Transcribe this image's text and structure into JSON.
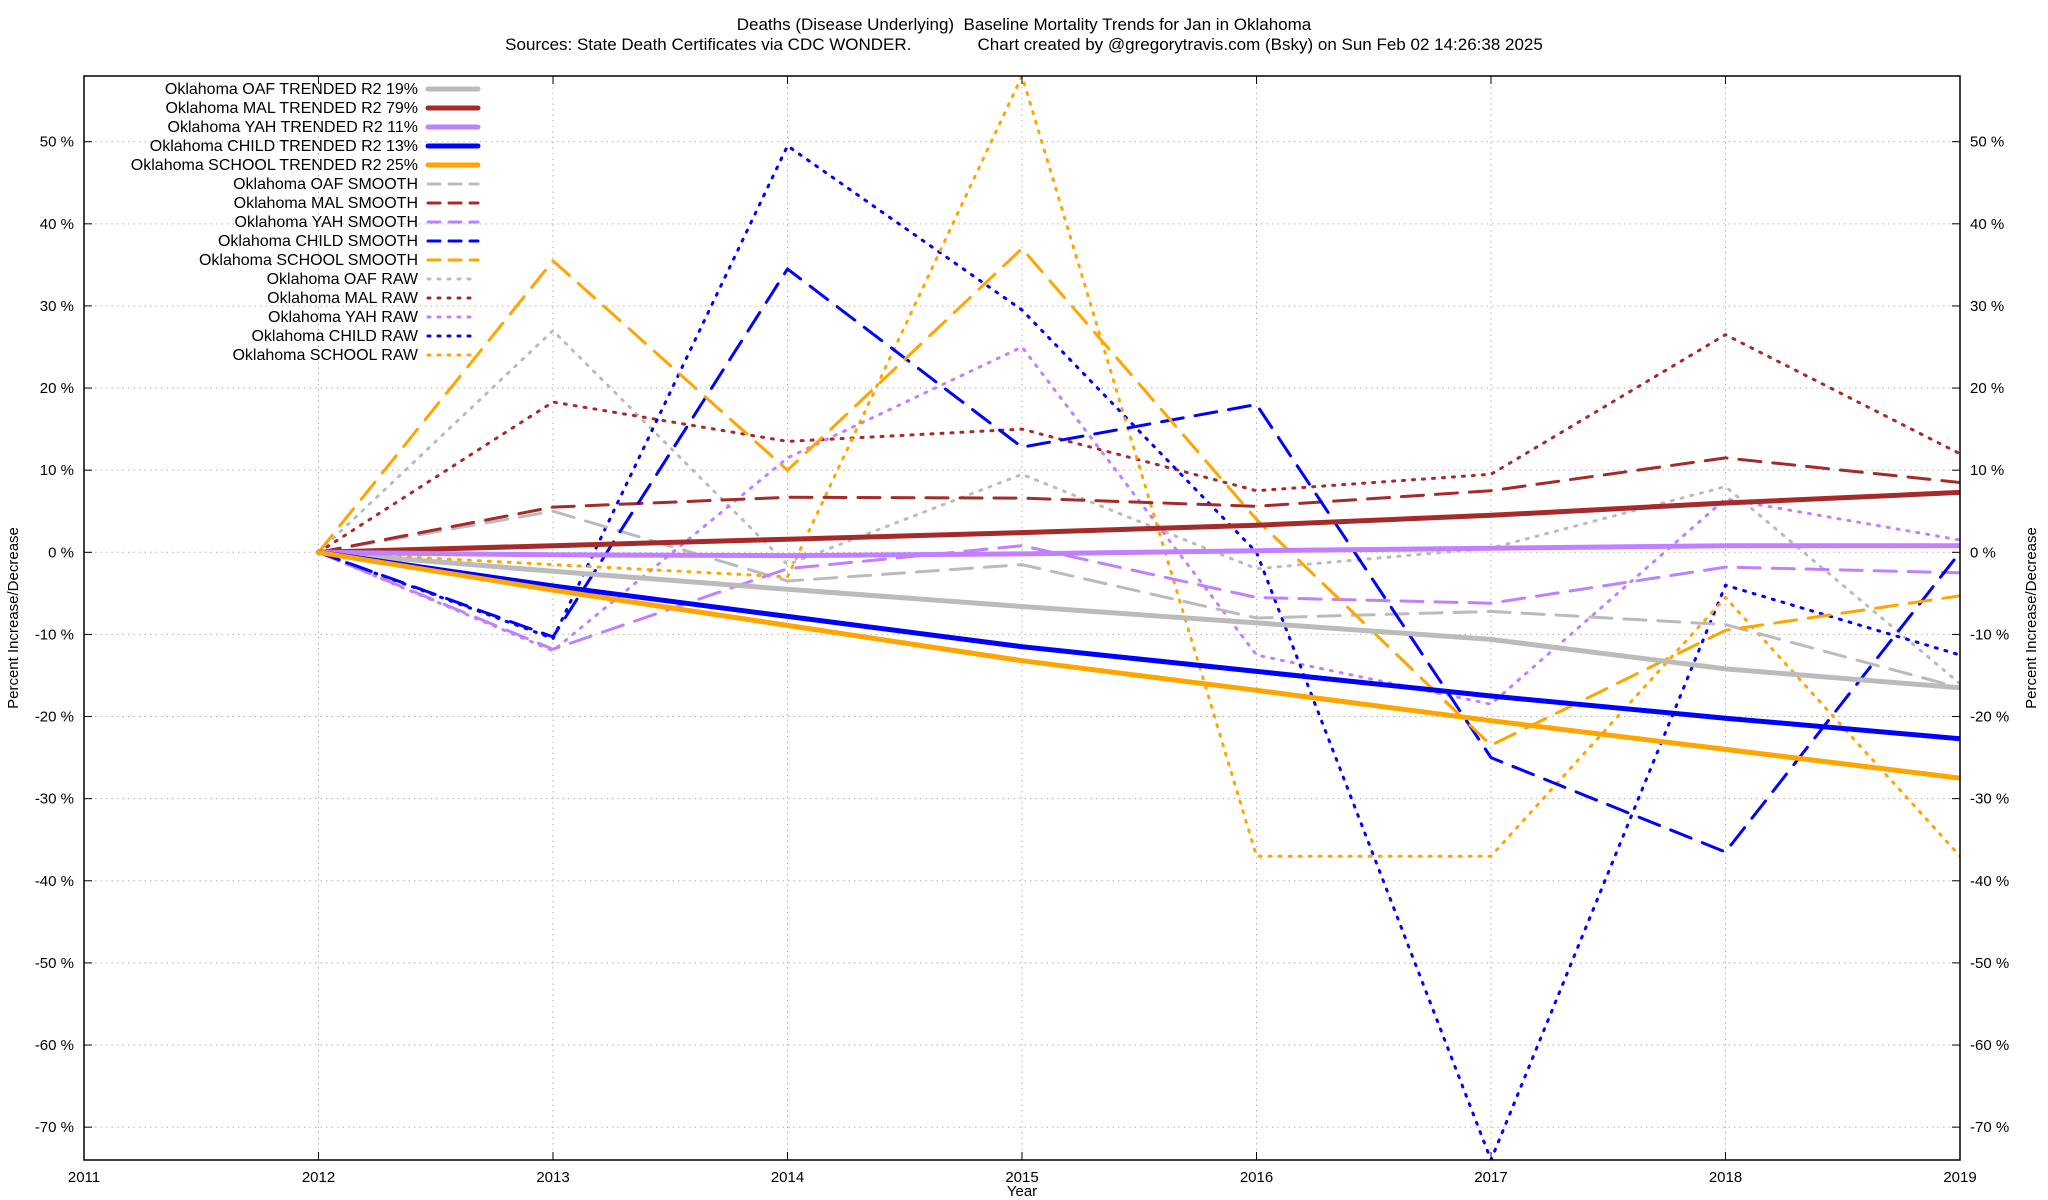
{
  "chart_data": {
    "type": "line",
    "title": "Deaths (Disease Underlying)  Baseline Mortality Trends for Jan in Oklahoma",
    "subtitle": "Sources: State Death Certificates via CDC WONDER.              Chart created by @gregorytravis.com (Bsky) on Sun Feb 02 14:26:38 2025",
    "xlabel": "Year",
    "ylabel": "Percent Increase/Decrease",
    "y2label": "Percent Increase/Decrease",
    "xlim": [
      2011,
      2019
    ],
    "ylim": [
      -74,
      58
    ],
    "x_ticks": [
      2011,
      2012,
      2013,
      2014,
      2015,
      2016,
      2017,
      2018,
      2019
    ],
    "y_ticks": [
      50,
      40,
      30,
      20,
      10,
      0,
      -10,
      -20,
      -30,
      -40,
      -50,
      -60,
      -70
    ],
    "y_tick_suffix": " %",
    "grid": true,
    "legend_position": "top-left",
    "x": [
      2012,
      2013,
      2014,
      2015,
      2016,
      2017,
      2018,
      2019
    ],
    "series": [
      {
        "name": "Oklahoma OAF TRENDED R2  19%",
        "style": "solid",
        "color": "#bbbbbb",
        "values": [
          0,
          -2.3,
          -4.5,
          -6.6,
          -8.6,
          -10.6,
          -14.2,
          -16.5
        ]
      },
      {
        "name": "Oklahoma MAL TRENDED R2  79%",
        "style": "solid",
        "color": "#a52a2a",
        "values": [
          0,
          0.8,
          1.6,
          2.4,
          3.3,
          4.5,
          6.0,
          7.3
        ]
      },
      {
        "name": "Oklahoma YAH TRENDED R2  11%",
        "style": "solid",
        "color": "#c080ff",
        "values": [
          0,
          -0.3,
          -0.4,
          -0.2,
          0.2,
          0.5,
          0.8,
          0.8
        ]
      },
      {
        "name": "Oklahoma CHILD TRENDED R2  13%",
        "style": "solid",
        "color": "#0000ff",
        "values": [
          0,
          -4.1,
          -7.8,
          -11.5,
          -14.5,
          -17.5,
          -20.2,
          -22.7
        ]
      },
      {
        "name": "Oklahoma SCHOOL TRENDED R2  25%",
        "style": "solid",
        "color": "#ffa500",
        "values": [
          0,
          -4.6,
          -8.9,
          -13.2,
          -16.8,
          -20.5,
          -24.0,
          -27.5
        ]
      },
      {
        "name": "Oklahoma OAF SMOOTH",
        "style": "dashed",
        "color": "#bbbbbb",
        "values": [
          0,
          5.0,
          -3.5,
          -1.5,
          -8.0,
          -7.2,
          -8.8,
          -16.5
        ]
      },
      {
        "name": "Oklahoma MAL SMOOTH",
        "style": "dashed",
        "color": "#a52a2a",
        "values": [
          0,
          5.5,
          6.7,
          6.6,
          5.6,
          7.5,
          11.5,
          8.5
        ]
      },
      {
        "name": "Oklahoma YAH SMOOTH",
        "style": "dashed",
        "color": "#c080ff",
        "values": [
          0,
          -11.8,
          -2.0,
          0.8,
          -5.5,
          -6.2,
          -1.8,
          -2.5
        ]
      },
      {
        "name": "Oklahoma CHILD SMOOTH",
        "style": "dashed",
        "color": "#0000ff",
        "values": [
          0,
          -10.3,
          34.5,
          12.8,
          18.0,
          -25.0,
          -36.5,
          0
        ]
      },
      {
        "name": "Oklahoma SCHOOL SMOOTH",
        "style": "dashed",
        "color": "#ffa500",
        "values": [
          0,
          35.5,
          10.0,
          37.0,
          4.0,
          -23.5,
          -9.5,
          -5.3
        ]
      },
      {
        "name": "Oklahoma OAF RAW",
        "style": "dotted",
        "color": "#bbbbbb",
        "values": [
          0,
          27.0,
          -1.5,
          9.5,
          -2.0,
          0.5,
          8.0,
          -16.0
        ]
      },
      {
        "name": "Oklahoma MAL RAW",
        "style": "dotted",
        "color": "#a52a2a",
        "values": [
          0,
          18.3,
          13.5,
          15.0,
          7.5,
          9.5,
          26.5,
          12.0
        ]
      },
      {
        "name": "Oklahoma YAH RAW",
        "style": "dotted",
        "color": "#c080ff",
        "values": [
          0,
          -12.0,
          11.5,
          25.0,
          -12.5,
          -18.5,
          6.5,
          1.5
        ]
      },
      {
        "name": "Oklahoma CHILD RAW",
        "style": "dotted",
        "color": "#0000ff",
        "values": [
          0,
          -10.5,
          49.5,
          29.5,
          0,
          -74,
          -4.0,
          -12.5
        ]
      },
      {
        "name": "Oklahoma SCHOOL RAW",
        "style": "dotted",
        "color": "#ffa500",
        "values": [
          0,
          -1.5,
          -3.0,
          58.0,
          -37.0,
          -37.0,
          -5.5,
          -37.0
        ]
      }
    ]
  }
}
